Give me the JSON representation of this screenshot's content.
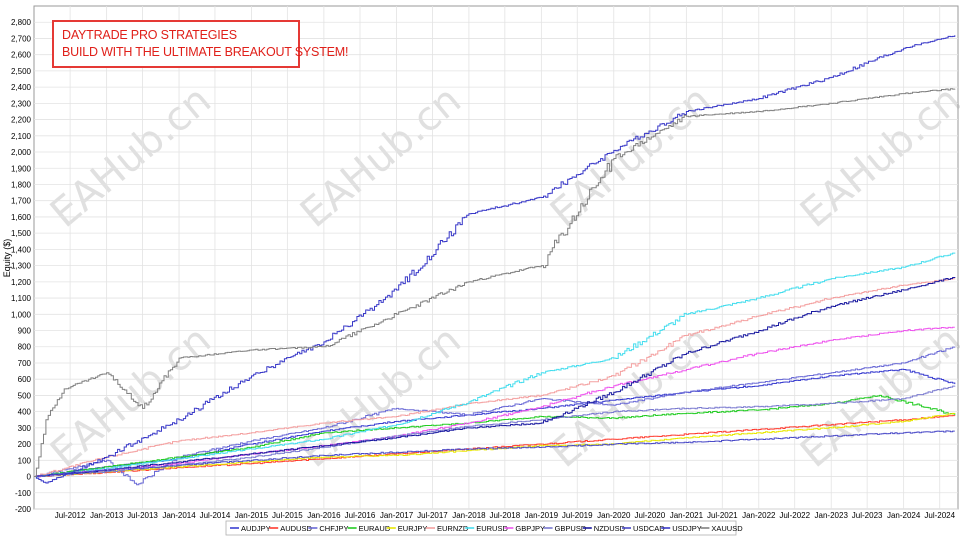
{
  "banner": {
    "line1": "DAYTRADE PRO STRATEGIES",
    "line2": "BUILD WITH THE ULTIMATE BREAKOUT SYSTEM!",
    "border_color": "#e53935",
    "text_color": "#e0201a"
  },
  "watermark": "EAHub.cn",
  "chart_data": {
    "type": "line",
    "ylabel": "Equity ($)",
    "xlabel": "",
    "ylim": [
      -200,
      2900
    ],
    "xlim": [
      "2012-01-01",
      "2024-10-01"
    ],
    "grid": true,
    "legend_position": "bottom",
    "y_ticks": [
      -200,
      -100,
      0,
      100,
      200,
      300,
      400,
      500,
      600,
      700,
      800,
      900,
      1000,
      1100,
      1200,
      1300,
      1400,
      1500,
      1600,
      1700,
      1800,
      1900,
      2000,
      2100,
      2200,
      2300,
      2400,
      2500,
      2600,
      2700,
      2800
    ],
    "y_tick_labels": [
      "-200",
      "-100",
      "0",
      "100",
      "200",
      "300",
      "400",
      "500",
      "600",
      "700",
      "800",
      "900",
      "1,000",
      "1,100",
      "1,200",
      "1,300",
      "1,400",
      "1,500",
      "1,600",
      "1,700",
      "1,800",
      "1,900",
      "2,000",
      "2,100",
      "2,200",
      "2,300",
      "2,400",
      "2,500",
      "2,600",
      "2,700",
      "2,800"
    ],
    "x_ticks": [
      {
        "label": "Jul-2012",
        "date": "2012-07-01"
      },
      {
        "label": "Jan-2013",
        "date": "2013-01-01"
      },
      {
        "label": "Jul-2013",
        "date": "2013-07-01"
      },
      {
        "label": "Jan-2014",
        "date": "2014-01-01"
      },
      {
        "label": "Jul-2014",
        "date": "2014-07-01"
      },
      {
        "label": "Jan-2015",
        "date": "2015-01-01"
      },
      {
        "label": "Jul-2015",
        "date": "2015-07-01"
      },
      {
        "label": "Jan-2016",
        "date": "2016-01-01"
      },
      {
        "label": "Jul-2016",
        "date": "2016-07-01"
      },
      {
        "label": "Jan-2017",
        "date": "2017-01-01"
      },
      {
        "label": "Jul-2017",
        "date": "2017-07-01"
      },
      {
        "label": "Jan-2018",
        "date": "2018-01-01"
      },
      {
        "label": "Jul-2018",
        "date": "2018-07-01"
      },
      {
        "label": "Jan-2019",
        "date": "2019-01-01"
      },
      {
        "label": "Jul-2019",
        "date": "2019-07-01"
      },
      {
        "label": "Jan-2020",
        "date": "2020-01-01"
      },
      {
        "label": "Jul-2020",
        "date": "2020-07-01"
      },
      {
        "label": "Jan-2021",
        "date": "2021-01-01"
      },
      {
        "label": "Jul-2021",
        "date": "2021-07-01"
      },
      {
        "label": "Jan-2022",
        "date": "2022-01-01"
      },
      {
        "label": "Jul-2022",
        "date": "2022-07-01"
      },
      {
        "label": "Jan-2023",
        "date": "2023-01-01"
      },
      {
        "label": "Jul-2023",
        "date": "2023-07-01"
      },
      {
        "label": "Jan-2024",
        "date": "2024-01-01"
      },
      {
        "label": "Jul-2024",
        "date": "2024-07-01"
      }
    ],
    "series": [
      {
        "name": "AUDJPY",
        "color": "#3b3fd0",
        "x": [
          "2012-01-01",
          "2013-01-01",
          "2014-01-01",
          "2015-01-01",
          "2016-01-01",
          "2017-01-01",
          "2018-01-01",
          "2019-01-01",
          "2020-01-01",
          "2021-01-01",
          "2022-01-01",
          "2023-01-01",
          "2024-01-01",
          "2024-09-15"
        ],
        "y": [
          0,
          60,
          110,
          200,
          280,
          340,
          380,
          420,
          470,
          520,
          560,
          620,
          660,
          570
        ]
      },
      {
        "name": "AUDUSD",
        "color": "#ff3b2f",
        "x": [
          "2012-01-01",
          "2013-01-01",
          "2014-01-01",
          "2015-01-01",
          "2016-01-01",
          "2017-01-01",
          "2018-01-01",
          "2019-01-01",
          "2020-01-01",
          "2021-01-01",
          "2022-01-01",
          "2023-01-01",
          "2024-01-01",
          "2024-09-15"
        ],
        "y": [
          0,
          25,
          55,
          80,
          110,
          140,
          170,
          200,
          230,
          260,
          290,
          320,
          350,
          375
        ]
      },
      {
        "name": "CHFJPY",
        "color": "#6a6ad6",
        "x": [
          "2012-01-01",
          "2013-01-01",
          "2013-06-01",
          "2014-01-01",
          "2015-01-01",
          "2016-01-01",
          "2017-01-01",
          "2018-01-01",
          "2019-01-01",
          "2020-01-01",
          "2021-01-01",
          "2022-01-01",
          "2023-01-01",
          "2024-01-01",
          "2024-09-15"
        ],
        "y": [
          0,
          100,
          -50,
          120,
          220,
          300,
          420,
          380,
          480,
          440,
          520,
          580,
          640,
          700,
          800
        ]
      },
      {
        "name": "EURAUD",
        "color": "#22cc22",
        "x": [
          "2012-01-01",
          "2013-01-01",
          "2014-01-01",
          "2015-01-01",
          "2016-01-01",
          "2017-01-01",
          "2018-01-01",
          "2019-01-01",
          "2020-01-01",
          "2021-01-01",
          "2022-01-01",
          "2023-01-01",
          "2023-09-01",
          "2024-09-15"
        ],
        "y": [
          0,
          60,
          120,
          180,
          270,
          300,
          330,
          370,
          360,
          390,
          410,
          450,
          500,
          380
        ]
      },
      {
        "name": "EURJPY",
        "color": "#e8e800",
        "x": [
          "2012-01-01",
          "2013-01-01",
          "2014-01-01",
          "2015-01-01",
          "2016-01-01",
          "2017-01-01",
          "2018-01-01",
          "2019-01-01",
          "2020-01-01",
          "2021-01-01",
          "2022-01-01",
          "2023-01-01",
          "2024-01-01",
          "2024-09-15"
        ],
        "y": [
          0,
          30,
          60,
          90,
          120,
          130,
          160,
          190,
          200,
          240,
          270,
          300,
          340,
          390
        ]
      },
      {
        "name": "EURNZD",
        "color": "#f4a0a0",
        "x": [
          "2012-01-01",
          "2013-01-01",
          "2014-01-01",
          "2015-01-01",
          "2016-01-01",
          "2017-01-01",
          "2018-01-01",
          "2019-01-01",
          "2020-01-01",
          "2021-01-01",
          "2022-01-01",
          "2023-01-01",
          "2024-01-01",
          "2024-09-15"
        ],
        "y": [
          0,
          120,
          220,
          270,
          330,
          370,
          450,
          500,
          620,
          870,
          990,
          1100,
          1180,
          1220
        ]
      },
      {
        "name": "EURUSD",
        "color": "#44ddee",
        "x": [
          "2012-01-01",
          "2013-01-01",
          "2014-01-01",
          "2015-01-01",
          "2016-01-01",
          "2017-01-01",
          "2018-01-01",
          "2019-01-01",
          "2020-01-01",
          "2021-01-01",
          "2022-01-01",
          "2023-01-01",
          "2024-01-01",
          "2024-09-15"
        ],
        "y": [
          0,
          50,
          110,
          170,
          230,
          320,
          460,
          640,
          730,
          1000,
          1100,
          1220,
          1290,
          1380
        ]
      },
      {
        "name": "GBPJPY",
        "color": "#ee55ee",
        "x": [
          "2012-01-01",
          "2013-01-01",
          "2014-01-01",
          "2015-01-01",
          "2016-01-01",
          "2017-01-01",
          "2018-01-01",
          "2019-01-01",
          "2020-01-01",
          "2021-01-01",
          "2022-01-01",
          "2023-01-01",
          "2024-01-01",
          "2024-09-15"
        ],
        "y": [
          0,
          40,
          80,
          140,
          190,
          250,
          330,
          430,
          560,
          660,
          760,
          840,
          900,
          920
        ]
      },
      {
        "name": "GBPUSD",
        "color": "#7a7ad0",
        "x": [
          "2012-01-01",
          "2013-01-01",
          "2014-01-01",
          "2015-01-01",
          "2016-01-01",
          "2017-01-01",
          "2018-01-01",
          "2019-01-01",
          "2020-01-01",
          "2021-01-01",
          "2022-01-01",
          "2023-01-01",
          "2024-01-01",
          "2024-09-15"
        ],
        "y": [
          0,
          30,
          70,
          120,
          180,
          250,
          310,
          350,
          400,
          420,
          430,
          450,
          480,
          560
        ]
      },
      {
        "name": "NZDUSD",
        "color": "#1a1aa0",
        "x": [
          "2012-01-01",
          "2013-01-01",
          "2014-01-01",
          "2015-01-01",
          "2016-01-01",
          "2017-01-01",
          "2018-01-01",
          "2019-01-01",
          "2020-01-01",
          "2021-01-01",
          "2022-01-01",
          "2023-01-01",
          "2024-01-01",
          "2024-09-15"
        ],
        "y": [
          0,
          40,
          90,
          140,
          190,
          240,
          300,
          330,
          520,
          760,
          900,
          1050,
          1150,
          1230
        ]
      },
      {
        "name": "USDCAD",
        "color": "#4a4ac8",
        "x": [
          "2012-01-01",
          "2013-01-01",
          "2014-01-01",
          "2015-01-01",
          "2016-01-01",
          "2017-01-01",
          "2018-01-01",
          "2019-01-01",
          "2020-01-01",
          "2021-01-01",
          "2022-01-01",
          "2023-01-01",
          "2024-01-01",
          "2024-09-15"
        ],
        "y": [
          0,
          40,
          70,
          100,
          130,
          150,
          170,
          180,
          200,
          210,
          230,
          250,
          270,
          280
        ]
      },
      {
        "name": "USDJPY",
        "color": "#3838c8",
        "x": [
          "2012-01-01",
          "2012-03-01",
          "2013-01-01",
          "2014-01-01",
          "2015-01-01",
          "2016-01-01",
          "2017-01-01",
          "2018-01-01",
          "2019-01-01",
          "2020-01-01",
          "2021-01-01",
          "2022-01-01",
          "2023-01-01",
          "2024-01-01",
          "2024-09-15"
        ],
        "y": [
          0,
          -40,
          120,
          350,
          620,
          830,
          1150,
          1620,
          1720,
          2010,
          2250,
          2330,
          2460,
          2640,
          2720
        ]
      },
      {
        "name": "XAUUSD",
        "color": "#808080",
        "x": [
          "2012-01-01",
          "2012-03-01",
          "2012-06-01",
          "2013-01-01",
          "2013-07-01",
          "2014-01-01",
          "2015-01-01",
          "2016-01-01",
          "2017-01-01",
          "2018-01-01",
          "2019-01-01",
          "2020-01-01",
          "2021-01-01",
          "2022-01-01",
          "2023-01-01",
          "2024-01-01",
          "2024-09-15"
        ],
        "y": [
          0,
          350,
          540,
          640,
          420,
          730,
          780,
          800,
          1000,
          1200,
          1300,
          1960,
          2220,
          2250,
          2300,
          2360,
          2390
        ]
      }
    ]
  }
}
